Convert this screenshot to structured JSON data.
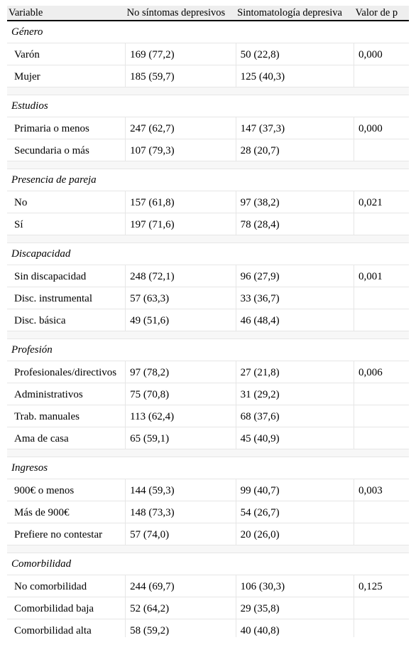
{
  "table": {
    "headers": [
      "Variable",
      "No síntomas depresivos",
      "Sintomatología depresiva",
      "Valor de p"
    ],
    "groups": [
      {
        "title": "Género",
        "rows": [
          {
            "label": "Varón",
            "no": "169 (77,2)",
            "si": "50 (22,8)",
            "p": "0,000"
          },
          {
            "label": "Mujer",
            "no": "185 (59,7)",
            "si": "125 (40,3)",
            "p": ""
          }
        ]
      },
      {
        "title": "Estudios",
        "rows": [
          {
            "label": "Primaria o menos",
            "no": "247 (62,7)",
            "si": "147 (37,3)",
            "p": "0,000"
          },
          {
            "label": "Secundaria o más",
            "no": "107 (79,3)",
            "si": "28 (20,7)",
            "p": ""
          }
        ]
      },
      {
        "title": "Presencia de pareja",
        "rows": [
          {
            "label": "No",
            "no": "157 (61,8)",
            "si": "97 (38,2)",
            "p": "0,021"
          },
          {
            "label": "Sí",
            "no": "197 (71,6)",
            "si": "78 (28,4)",
            "p": ""
          }
        ]
      },
      {
        "title": "Discapacidad",
        "rows": [
          {
            "label": "Sin discapacidad",
            "no": "248 (72,1)",
            "si": "96 (27,9)",
            "p": "0,001"
          },
          {
            "label": "Disc. instrumental",
            "no": "57 (63,3)",
            "si": "33 (36,7)",
            "p": ""
          },
          {
            "label": "Disc. básica",
            "no": "49 (51,6)",
            "si": "46 (48,4)",
            "p": ""
          }
        ]
      },
      {
        "title": "Profesión",
        "rows": [
          {
            "label": "Profesionales/directivos",
            "no": "97 (78,2)",
            "si": "27 (21,8)",
            "p": "0,006"
          },
          {
            "label": "Administrativos",
            "no": "75 (70,8)",
            "si": "31 (29,2)",
            "p": ""
          },
          {
            "label": "Trab. manuales",
            "no": "113 (62,4)",
            "si": "68 (37,6)",
            "p": ""
          },
          {
            "label": "Ama de casa",
            "no": "65 (59,1)",
            "si": "45 (40,9)",
            "p": ""
          }
        ]
      },
      {
        "title": "Ingresos",
        "rows": [
          {
            "label": "900€ o menos",
            "no": "144 (59,3)",
            "si": "99 (40,7)",
            "p": "0,003"
          },
          {
            "label": "Más de 900€",
            "no": "148 (73,3)",
            "si": "54 (26,7)",
            "p": ""
          },
          {
            "label": "Prefiere no contestar",
            "no": "57 (74,0)",
            "si": "20 (26,0)",
            "p": ""
          }
        ]
      },
      {
        "title": "Comorbilidad",
        "rows": [
          {
            "label": "No comorbilidad",
            "no": "244 (69,7)",
            "si": "106 (30,3)",
            "p": "0,125"
          },
          {
            "label": "Comorbilidad baja",
            "no": "52 (64,2)",
            "si": "29 (35,8)",
            "p": ""
          },
          {
            "label": "Comorbilidad alta",
            "no": "58 (59,2)",
            "si": "40 (40,8)",
            "p": ""
          }
        ]
      }
    ]
  }
}
